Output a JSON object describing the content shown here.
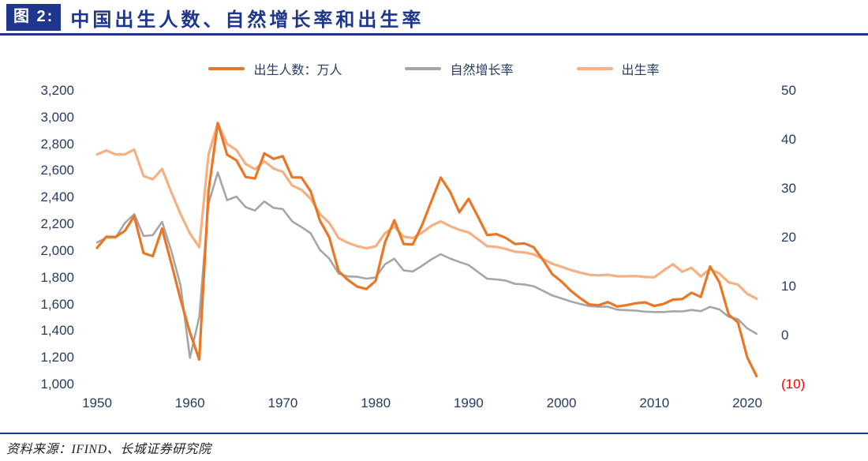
{
  "header": {
    "badge": "图 2:",
    "title": "中国出生人数、自然增长率和出生率"
  },
  "footer": {
    "source": "资料来源：IFIND、长城证券研究院"
  },
  "colors": {
    "navy": "#1E368C",
    "axis_text": "#273B63",
    "births_line": "#E97728",
    "natural_growth_line": "#A6A6A6",
    "birth_rate_line": "#F5B183",
    "negative_tick": "#FF0000",
    "background": "#FFFFFF"
  },
  "chart_data": {
    "type": "line",
    "title": "中国出生人数、自然增长率和出生率",
    "grid": false,
    "legend_position": "top",
    "x": [
      1950,
      1951,
      1952,
      1953,
      1954,
      1955,
      1956,
      1957,
      1958,
      1959,
      1960,
      1961,
      1962,
      1963,
      1964,
      1965,
      1966,
      1967,
      1968,
      1969,
      1970,
      1971,
      1972,
      1973,
      1974,
      1975,
      1976,
      1977,
      1978,
      1979,
      1980,
      1981,
      1982,
      1983,
      1984,
      1985,
      1986,
      1987,
      1988,
      1989,
      1990,
      1991,
      1992,
      1993,
      1994,
      1995,
      1996,
      1997,
      1998,
      1999,
      2000,
      2001,
      2002,
      2003,
      2004,
      2005,
      2006,
      2007,
      2008,
      2009,
      2010,
      2011,
      2012,
      2013,
      2014,
      2015,
      2016,
      2017,
      2018,
      2019,
      2020,
      2021
    ],
    "series": [
      {
        "key": "births",
        "name": "出生人数：万人",
        "axis": "left",
        "color": "#E97728",
        "width": 3.2,
        "values": [
          2023,
          2107,
          2105,
          2151,
          2260,
          1984,
          1961,
          2167,
          1905,
          1635,
          1389,
          1187,
          2451,
          2959,
          2721,
          2679,
          2554,
          2543,
          2731,
          2690,
          2710,
          2551,
          2550,
          2447,
          2226,
          2102,
          1849,
          1783,
          1733,
          1715,
          1776,
          2064,
          2230,
          2052,
          2050,
          2196,
          2374,
          2550,
          2445,
          2290,
          2391,
          2258,
          2119,
          2126,
          2098,
          2052,
          2057,
          2028,
          1934,
          1827,
          1771,
          1702,
          1647,
          1599,
          1593,
          1617,
          1584,
          1594,
          1608,
          1615,
          1588,
          1604,
          1635,
          1640,
          1687,
          1655,
          1883,
          1765,
          1523,
          1465,
          1202,
          1062
        ]
      },
      {
        "key": "natural-growth-rate",
        "name": "自然增长率",
        "axis": "right",
        "color": "#A6A6A6",
        "width": 2.6,
        "values": [
          19.0,
          20.0,
          20.0,
          23.0,
          24.79,
          20.32,
          20.5,
          23.23,
          17.24,
          10.19,
          -4.57,
          3.78,
          26.99,
          33.33,
          27.64,
          28.38,
          26.22,
          25.53,
          27.38,
          26.08,
          25.83,
          23.33,
          22.16,
          20.89,
          17.48,
          15.69,
          12.66,
          12.06,
          12.0,
          11.61,
          11.87,
          14.55,
          15.68,
          13.29,
          13.08,
          14.26,
          15.57,
          16.61,
          15.73,
          15.04,
          14.39,
          12.98,
          11.6,
          11.45,
          11.21,
          10.55,
          10.42,
          10.06,
          9.14,
          8.18,
          7.58,
          6.95,
          6.45,
          6.01,
          5.87,
          5.89,
          5.28,
          5.17,
          5.08,
          4.87,
          4.79,
          4.79,
          4.95,
          4.92,
          5.21,
          4.96,
          5.86,
          5.32,
          3.81,
          3.34,
          1.45,
          0.34
        ]
      },
      {
        "key": "birth-rate",
        "name": "出生率",
        "axis": "right",
        "color": "#F5B183",
        "width": 3.2,
        "values": [
          37.0,
          37.8,
          37.0,
          37.0,
          37.97,
          32.6,
          31.9,
          34.03,
          29.22,
          24.78,
          20.86,
          18.02,
          37.01,
          43.37,
          39.14,
          37.88,
          35.05,
          33.96,
          35.59,
          34.11,
          33.43,
          30.65,
          29.77,
          27.93,
          24.82,
          23.01,
          19.91,
          18.93,
          18.25,
          17.82,
          18.21,
          20.91,
          22.28,
          20.19,
          19.9,
          21.04,
          22.43,
          23.33,
          22.37,
          21.58,
          21.06,
          19.68,
          18.24,
          18.09,
          17.7,
          17.12,
          16.98,
          16.57,
          15.64,
          14.64,
          14.03,
          13.38,
          12.86,
          12.41,
          12.29,
          12.4,
          12.09,
          12.1,
          12.14,
          11.95,
          11.9,
          13.27,
          14.57,
          13.03,
          13.83,
          12.07,
          13.57,
          12.64,
          10.86,
          10.41,
          8.52,
          7.52
        ]
      }
    ],
    "left_axis": {
      "min": 1000,
      "max": 3200,
      "tick_step": 200,
      "ticks": [
        "3,200",
        "3,000",
        "2,800",
        "2,600",
        "2,400",
        "2,200",
        "2,000",
        "1,800",
        "1,600",
        "1,400",
        "1,200",
        "1,000"
      ]
    },
    "right_axis": {
      "min": -10,
      "max": 50,
      "tick_step": 10,
      "ticks": [
        "50",
        "40",
        "30",
        "20",
        "10",
        "0",
        "(10)"
      ]
    },
    "x_ticks": [
      "1950",
      "1960",
      "1970",
      "1980",
      "1990",
      "2000",
      "2010",
      "2020"
    ]
  }
}
